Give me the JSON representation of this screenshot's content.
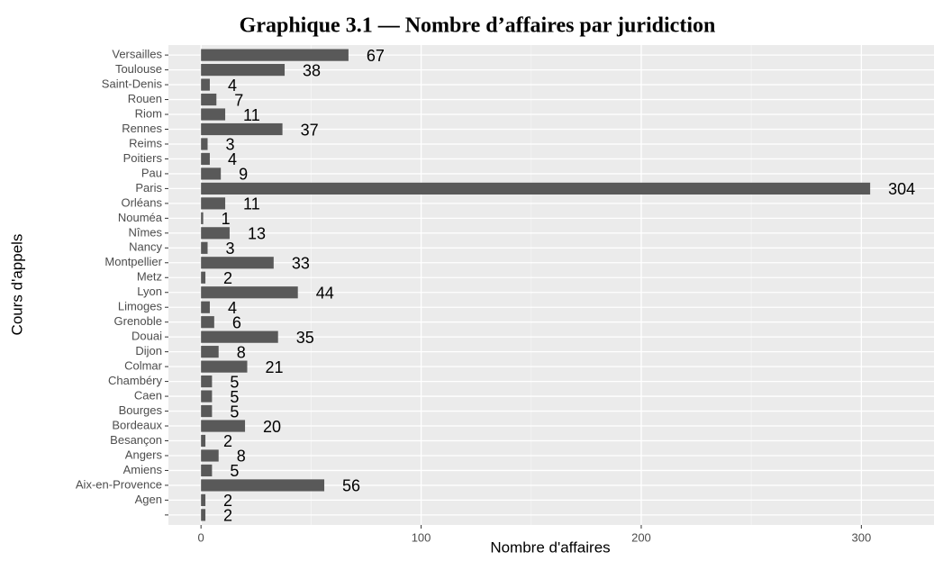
{
  "chart_data": {
    "type": "barh",
    "title": "Graphique 3.1 — Nombre d’affaires par juridiction",
    "xlabel": "Nombre d'affaires",
    "ylabel": "Cours d'appels",
    "categories": [
      "Versailles",
      "Toulouse",
      "Saint-Denis",
      "Rouen",
      "Riom",
      "Rennes",
      "Reims",
      "Poitiers",
      "Pau",
      "Paris",
      "Orléans",
      "Nouméa",
      "Nîmes",
      "Nancy",
      "Montpellier",
      "Metz",
      "Lyon",
      "Limoges",
      "Grenoble",
      "Douai",
      "Dijon",
      "Colmar",
      "Chambéry",
      "Caen",
      "Bourges",
      "Bordeaux",
      "Besançon",
      "Angers",
      "Amiens",
      "Aix-en-Provence",
      "Agen",
      null
    ],
    "values": [
      67,
      38,
      4,
      7,
      11,
      37,
      3,
      4,
      9,
      304,
      11,
      1,
      13,
      3,
      33,
      2,
      44,
      4,
      6,
      35,
      8,
      21,
      5,
      5,
      5,
      20,
      2,
      8,
      5,
      56,
      2,
      2
    ],
    "color": "#595959",
    "xlim": [
      -14.8,
      333
    ],
    "xticks": [
      0,
      100,
      200,
      300
    ],
    "xminor": [
      50,
      150,
      250
    ],
    "grid": true
  }
}
